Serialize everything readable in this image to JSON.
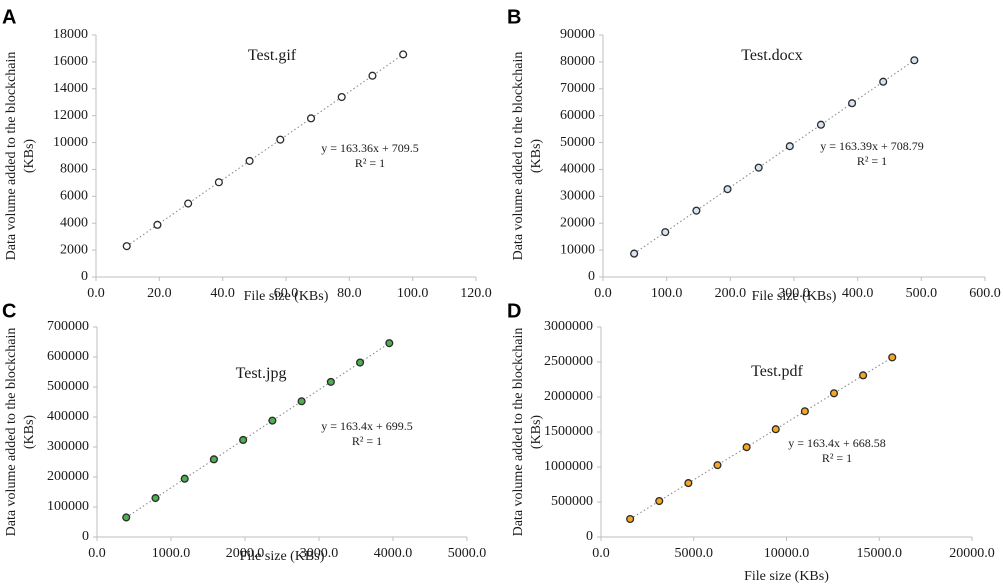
{
  "chart_data": [
    {
      "panel": "A",
      "type": "scatter",
      "title": "Test.gif",
      "xlabel": "File size (KBs)",
      "ylabel_line1": "Data volume added to the blockchain",
      "ylabel_line2": "(KBs)",
      "equation": "y = 163.36x + 709.5",
      "r_squared": "R² = 1",
      "xlim": [
        0,
        120
      ],
      "ylim": [
        0,
        18000
      ],
      "xticks": [
        "0.0",
        "20.0",
        "40.0",
        "60.0",
        "80.0",
        "100.0",
        "120.0"
      ],
      "yticks": [
        "0",
        "2000",
        "4000",
        "6000",
        "8000",
        "10000",
        "12000",
        "14000",
        "16000",
        "18000"
      ],
      "x": [
        9.7,
        19.4,
        29.1,
        38.8,
        48.5,
        58.2,
        67.9,
        77.6,
        87.3,
        97.0
      ],
      "y": [
        2294,
        3878,
        5463,
        7048,
        8632,
        10217,
        11801,
        13386,
        14971,
        16555
      ],
      "fill": "#ffffff",
      "stroke": "#d62728"
    },
    {
      "panel": "B",
      "type": "scatter",
      "title": "Test.docx",
      "xlabel": "File size (KBs)",
      "ylabel_line1": "Data volume added to the blockchain",
      "ylabel_line2": "(KBs)",
      "equation": "y = 163.39x + 708.79",
      "r_squared": "R² = 1",
      "xlim": [
        0,
        600
      ],
      "ylim": [
        0,
        90000
      ],
      "xticks": [
        "0.0",
        "100.0",
        "200.0",
        "300.0",
        "400.0",
        "500.0",
        "600.0"
      ],
      "yticks": [
        "0",
        "10000",
        "20000",
        "30000",
        "40000",
        "50000",
        "60000",
        "70000",
        "80000",
        "90000"
      ],
      "x": [
        48.9,
        97.8,
        146.7,
        195.6,
        244.5,
        293.4,
        342.3,
        391.2,
        440.1,
        489.0
      ],
      "y": [
        8699,
        16689,
        24679,
        32669,
        40659,
        48649,
        56639,
        64629,
        72619,
        80608
      ],
      "fill": "#d9e4f2",
      "stroke": "#1f2d3d"
    },
    {
      "panel": "C",
      "type": "scatter",
      "title": "Test.jpg",
      "xlabel": "File size (KBs)",
      "ylabel_line1": "Data volume added to the blockchain",
      "ylabel_line2": "(KBs)",
      "equation": "y = 163.4x + 699.5",
      "r_squared": "R² = 1",
      "xlim": [
        0,
        5000
      ],
      "ylim": [
        0,
        700000
      ],
      "xticks": [
        "0.0",
        "1000.0",
        "2000.0",
        "3000.0",
        "4000.0",
        "5000.0"
      ],
      "yticks": [
        "0",
        "100000",
        "200000",
        "300000",
        "400000",
        "500000",
        "600000",
        "700000"
      ],
      "x": [
        395,
        790,
        1185,
        1580,
        1975,
        2370,
        2765,
        3160,
        3555,
        3950
      ],
      "y": [
        65243,
        129786,
        194329,
        258872,
        323415,
        387958,
        452501,
        517044,
        581587,
        646130
      ],
      "fill": "#4caf50",
      "stroke": "#1b3d1b"
    },
    {
      "panel": "D",
      "type": "scatter",
      "title": "Test.pdf",
      "xlabel": "File size (KBs)",
      "ylabel_line1": "Data volume added to the blockchain",
      "ylabel_line2": "(KBs)",
      "equation": "y = 163.4x + 668.58",
      "r_squared": "R² = 1",
      "xlim": [
        0,
        20000
      ],
      "ylim": [
        0,
        3000000
      ],
      "xticks": [
        "0.0",
        "5000.0",
        "10000.0",
        "15000.0",
        "20000.0"
      ],
      "yticks": [
        "0",
        "500000",
        "1000000",
        "1500000",
        "2000000",
        "2500000",
        "3000000"
      ],
      "x": [
        1570,
        3140,
        4710,
        6280,
        7850,
        9420,
        10990,
        12560,
        14130,
        15700
      ],
      "y": [
        257207,
        513745,
        770282,
        1026820,
        1283359,
        1539897,
        1796435,
        2052973,
        2309511,
        2566049
      ],
      "fill": "#f5a623",
      "stroke": "#3d2a00"
    }
  ]
}
